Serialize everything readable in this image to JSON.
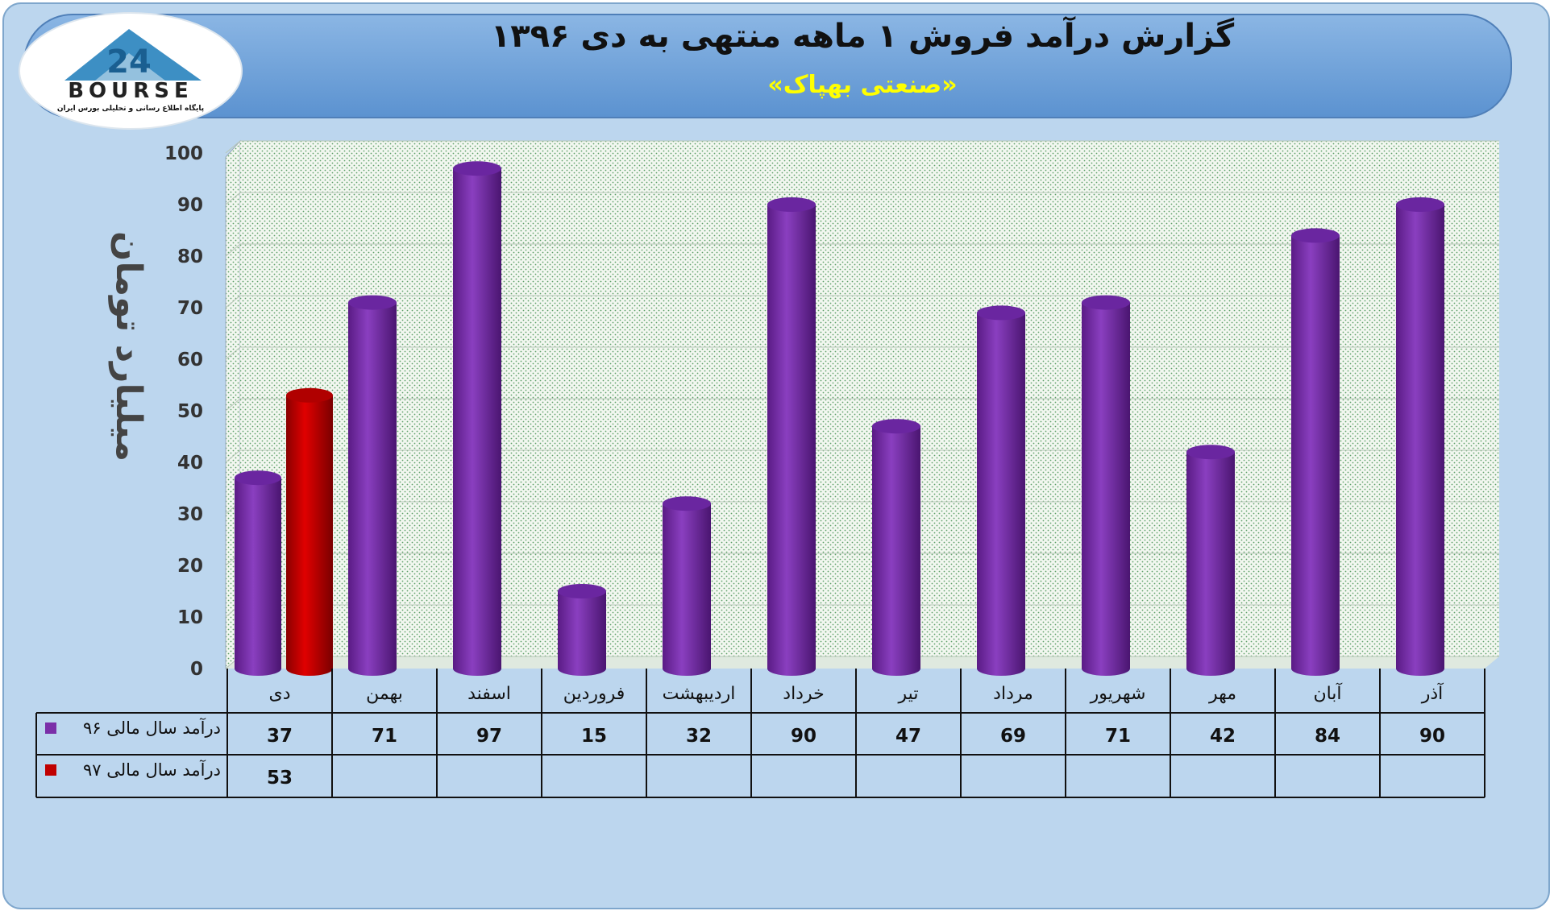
{
  "header": {
    "title": "گزارش درآمد فروش ۱ ماهه منتهی به دی ۱۳۹۶",
    "subtitle": "«صنعتی بهپاک»"
  },
  "logo": {
    "wordmark": "BOURSE",
    "number": "24",
    "tagline": "پایگاه اطلاع رسانی و تحلیلی بورس ایران"
  },
  "colors": {
    "background": "#bcd6ee",
    "header_band": "#6da0d8",
    "series_96": "#7a2fa8",
    "series_97": "#c00000",
    "subtitle": "#ffff00"
  },
  "chart_data": {
    "type": "bar",
    "ylabel": "میلیارد تومان",
    "ylim": [
      0,
      100
    ],
    "yticks": [
      0,
      10,
      20,
      30,
      40,
      50,
      60,
      70,
      80,
      90,
      100
    ],
    "grid": true,
    "legend": "table-below",
    "categories": [
      "دی",
      "بهمن",
      "اسفند",
      "فروردین",
      "اردیبهشت",
      "خرداد",
      "تیر",
      "مرداد",
      "شهریور",
      "مهر",
      "آبان",
      "آذر"
    ],
    "series": [
      {
        "name": "درآمد سال مالی ۹۶",
        "color": "#7a2fa8",
        "values": [
          37,
          71,
          97,
          15,
          32,
          90,
          47,
          69,
          71,
          42,
          84,
          90
        ]
      },
      {
        "name": "درآمد سال مالی ۹۷",
        "color": "#c00000",
        "values": [
          53,
          null,
          null,
          null,
          null,
          null,
          null,
          null,
          null,
          null,
          null,
          null
        ]
      }
    ]
  }
}
